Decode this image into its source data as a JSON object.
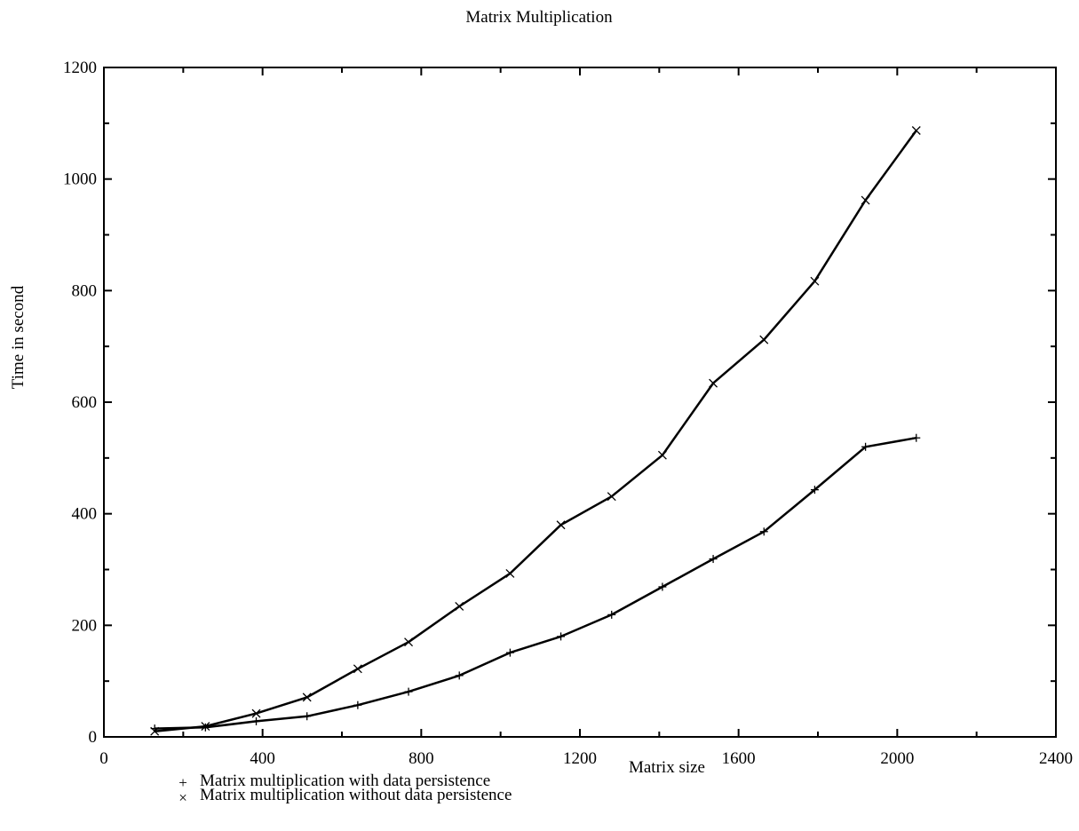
{
  "chart_data": {
    "type": "line",
    "title": "Matrix Multiplication",
    "xlabel": "Matrix size",
    "ylabel": "Time in second",
    "xlim": [
      0,
      2400
    ],
    "ylim": [
      0,
      1200
    ],
    "x_ticks": [
      0,
      400,
      800,
      1200,
      1600,
      2000,
      2400
    ],
    "y_ticks": [
      0,
      200,
      400,
      600,
      800,
      1000,
      1200
    ],
    "x_tick_labels": [
      "0",
      "400",
      "800",
      "1200",
      "1600",
      "2000",
      "2400"
    ],
    "y_tick_labels": [
      "0",
      "200",
      "400",
      "600",
      "800",
      "1000",
      "1200"
    ],
    "grid": false,
    "legend_position": "bottom-left",
    "series": [
      {
        "name": "Matrix multiplication with data persistence",
        "marker": "+",
        "x": [
          128,
          256,
          384,
          512,
          640,
          768,
          896,
          1024,
          1152,
          1280,
          1408,
          1536,
          1664,
          1792,
          1920,
          2048
        ],
        "y": [
          15,
          17,
          28,
          37,
          57,
          81,
          110,
          151,
          180,
          219,
          269,
          319,
          368,
          443,
          520,
          536
        ]
      },
      {
        "name": "Matrix multiplication without data persistence",
        "marker": "×",
        "x": [
          128,
          256,
          384,
          512,
          640,
          768,
          896,
          1024,
          1152,
          1280,
          1408,
          1536,
          1664,
          1792,
          1920,
          2048
        ],
        "y": [
          10,
          19,
          42,
          71,
          122,
          170,
          234,
          293,
          380,
          431,
          505,
          634,
          712,
          817,
          962,
          1087
        ]
      }
    ]
  }
}
